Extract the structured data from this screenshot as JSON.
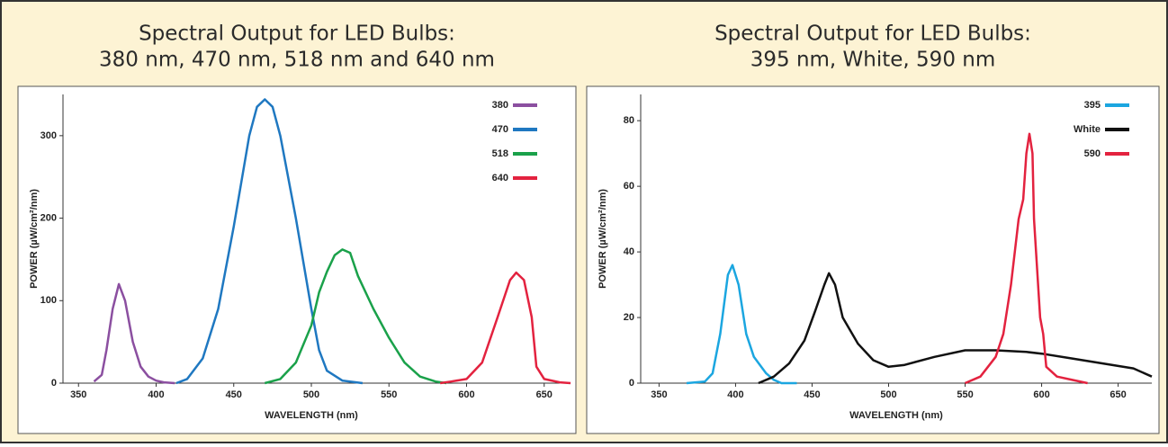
{
  "chart_data": [
    {
      "type": "line",
      "title": [
        "Spectral Output for LED Bulbs:",
        "380 nm, 470 nm, 518 nm and 640 nm"
      ],
      "x_label": "WAVELENGTH (nm)",
      "y_label": "POWER (µW/cm²/nm)",
      "xlim": [
        340,
        660
      ],
      "xticks": [
        350,
        400,
        450,
        500,
        550,
        600,
        650
      ],
      "ylim": [
        0,
        350
      ],
      "yticks": [
        0,
        100,
        200,
        300
      ],
      "legend": "upper right",
      "series": [
        {
          "name": "380",
          "color": "#8b4fa0",
          "x": [
            360,
            365,
            368,
            372,
            376,
            380,
            385,
            390,
            395,
            400,
            405,
            412
          ],
          "values": [
            2,
            10,
            40,
            90,
            120,
            100,
            50,
            20,
            8,
            3,
            1,
            0
          ]
        },
        {
          "name": "470",
          "color": "#1f78c1",
          "x": [
            413,
            420,
            430,
            440,
            450,
            460,
            465,
            470,
            475,
            480,
            490,
            500,
            505,
            510,
            520,
            533
          ],
          "values": [
            0,
            5,
            30,
            90,
            190,
            300,
            335,
            344,
            335,
            300,
            200,
            90,
            40,
            15,
            3,
            0
          ]
        },
        {
          "name": "518",
          "color": "#1aa14a",
          "x": [
            470,
            480,
            490,
            500,
            505,
            510,
            515,
            520,
            525,
            530,
            540,
            550,
            560,
            570,
            580,
            587
          ],
          "values": [
            0,
            5,
            25,
            70,
            110,
            135,
            155,
            162,
            158,
            130,
            90,
            55,
            25,
            8,
            2,
            0
          ]
        },
        {
          "name": "640",
          "color": "#e3223f",
          "x": [
            583,
            590,
            600,
            610,
            620,
            628,
            632,
            637,
            642,
            645,
            650,
            660,
            667
          ],
          "values": [
            0,
            2,
            5,
            25,
            80,
            125,
            134,
            125,
            80,
            20,
            5,
            1,
            0
          ]
        }
      ]
    },
    {
      "type": "line",
      "title": [
        "Spectral Output for LED Bulbs:",
        "395 nm, White, 590 nm"
      ],
      "x_label": "WAVELENGTH (nm)",
      "y_label": "POWER (µW/cm²/nm)",
      "xlim": [
        338,
        672
      ],
      "xticks": [
        350,
        400,
        450,
        500,
        550,
        600,
        650
      ],
      "ylim": [
        0,
        88
      ],
      "yticks": [
        0,
        20,
        40,
        60,
        80
      ],
      "legend": "upper right",
      "series": [
        {
          "name": "395",
          "color": "#1ba6e0",
          "x": [
            368,
            380,
            385,
            390,
            395,
            398,
            402,
            407,
            412,
            420,
            425,
            430,
            440
          ],
          "values": [
            0,
            0.5,
            3,
            15,
            33,
            36,
            30,
            15,
            8,
            3,
            1,
            0,
            0
          ]
        },
        {
          "name": "White",
          "color": "#111111",
          "x": [
            415,
            425,
            435,
            445,
            452,
            458,
            461,
            465,
            470,
            480,
            490,
            500,
            510,
            530,
            550,
            570,
            590,
            600,
            620,
            640,
            660,
            672
          ],
          "values": [
            0,
            2,
            6,
            13,
            22,
            30,
            33.5,
            30,
            20,
            12,
            7,
            5,
            5.5,
            8,
            10,
            10,
            9.5,
            9,
            7.5,
            6,
            4.5,
            2
          ]
        },
        {
          "name": "590",
          "color": "#e3223f",
          "x": [
            550,
            560,
            570,
            575,
            580,
            585,
            588,
            590,
            592,
            594,
            595,
            597,
            599,
            601,
            603,
            610,
            620,
            630
          ],
          "values": [
            0,
            2,
            8,
            15,
            30,
            50,
            56,
            70,
            76,
            70,
            50,
            35,
            20,
            15,
            5,
            2,
            1,
            0
          ]
        }
      ]
    }
  ]
}
